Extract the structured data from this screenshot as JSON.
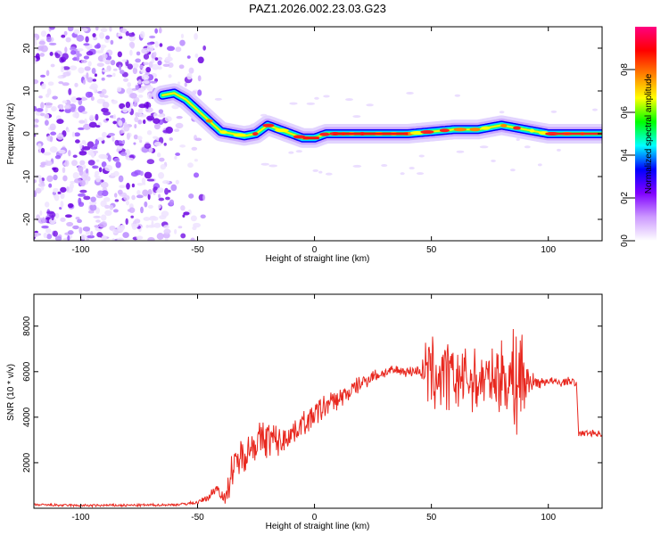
{
  "title": "PAZ1.2026.002.23.03.G23",
  "chart_data": [
    {
      "type": "heatmap",
      "title": "PAZ1.2026.002.23.03.G23",
      "xlabel": "Height of straight line (km)",
      "ylabel": "Frequency (Hz)",
      "xlim": [
        -120,
        123
      ],
      "ylim": [
        -25,
        25
      ],
      "xticks": [
        -100,
        -50,
        0,
        50,
        100
      ],
      "yticks": [
        -20,
        -10,
        0,
        10,
        20
      ],
      "xtick_labels": [
        "-100",
        "-50",
        "0",
        "50",
        "100"
      ],
      "ytick_labels": [
        "-20",
        "-10",
        "0",
        "10",
        "20"
      ],
      "ridge": {
        "x": [
          -65,
          -60,
          -55,
          -50,
          -45,
          -40,
          -35,
          -30,
          -25,
          -20,
          -15,
          -10,
          -5,
          0,
          5,
          10,
          20,
          30,
          40,
          50,
          60,
          70,
          80,
          85,
          90,
          95,
          100,
          110,
          123
        ],
        "y": [
          9,
          9.5,
          8,
          5.5,
          3,
          0.5,
          0,
          -0.5,
          0,
          2,
          1,
          0,
          -1,
          -1,
          0,
          0,
          0,
          0,
          0,
          0.5,
          1,
          1,
          2,
          1.5,
          1,
          0.5,
          0,
          0,
          0
        ]
      },
      "noise_region_x": [
        -120,
        -47
      ],
      "colorbar": {
        "label": "Normalized spectral amplitude",
        "range": [
          0,
          1
        ],
        "ticks": [
          0,
          0.2,
          0.4,
          0.6,
          0.8
        ],
        "tick_labels": [
          "0.0",
          "0.2",
          "0.4",
          "0.6",
          "0.8"
        ],
        "colors": [
          "#ffffff",
          "#cc99ff",
          "#8000ff",
          "#0000ff",
          "#00ffff",
          "#00ff00",
          "#ffff00",
          "#ff8000",
          "#ff0000",
          "#ff0080"
        ]
      }
    },
    {
      "type": "line",
      "xlabel": "Height of straight line (km)",
      "ylabel": "SNR (10 * v/v)",
      "xlim": [
        -120,
        123
      ],
      "ylim": [
        0,
        9400
      ],
      "xticks": [
        -100,
        -50,
        0,
        50,
        100
      ],
      "yticks": [
        2000,
        4000,
        6000,
        8000
      ],
      "xtick_labels": [
        "-100",
        "-50",
        "0",
        "50",
        "100"
      ],
      "ytick_labels": [
        "2000",
        "4000",
        "6000",
        "8000"
      ],
      "color": "#e8271e",
      "series": [
        {
          "name": "SNR",
          "x": [
            -120,
            -100,
            -80,
            -60,
            -50,
            -45,
            -42,
            -40,
            -38,
            -36,
            -30,
            -25,
            -20,
            -15,
            -10,
            -5,
            0,
            5,
            10,
            15,
            20,
            25,
            30,
            35,
            40,
            45,
            48,
            50,
            55,
            60,
            65,
            70,
            75,
            80,
            85,
            88,
            90,
            92,
            95,
            100,
            105,
            110,
            112,
            113,
            120,
            123
          ],
          "values": [
            150,
            120,
            130,
            150,
            250,
            500,
            900,
            700,
            300,
            1500,
            2500,
            2900,
            3100,
            2900,
            3300,
            3700,
            4100,
            4500,
            4800,
            5100,
            5500,
            5800,
            5950,
            6050,
            6000,
            6050,
            6100,
            5900,
            5800,
            5800,
            5700,
            5600,
            5700,
            5700,
            5700,
            5800,
            5600,
            5600,
            5500,
            5600,
            5500,
            5600,
            5400,
            3300,
            3300,
            3250
          ],
          "noise_amplitude": [
            60,
            60,
            60,
            60,
            80,
            200,
            300,
            300,
            300,
            900,
            900,
            900,
            900,
            700,
            600,
            600,
            600,
            600,
            500,
            400,
            400,
            300,
            250,
            250,
            250,
            250,
            1500,
            1800,
            1800,
            1600,
            1500,
            1400,
            1200,
            1800,
            2200,
            3500,
            2500,
            500,
            300,
            200,
            200,
            200,
            200,
            150,
            150,
            150
          ]
        }
      ]
    }
  ]
}
